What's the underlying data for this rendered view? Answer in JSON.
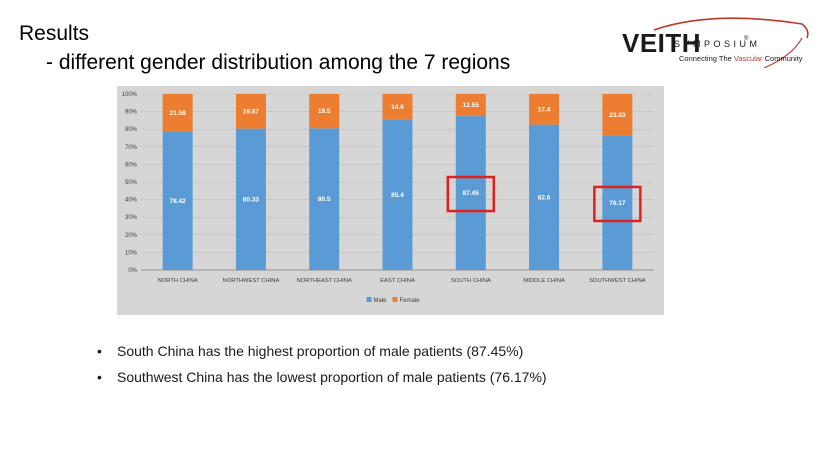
{
  "slide": {
    "title": "Results",
    "subtitle": "- different gender distribution among the 7 regions"
  },
  "logo": {
    "name": "VEITH",
    "symposium": "SYMPOSIUM",
    "tagline_before": "Connecting The ",
    "tagline_highlight": "Vascular",
    "tagline_after": " Community",
    "registered": "®"
  },
  "colors": {
    "male": "#5b9bd5",
    "female": "#ed7d31",
    "highlight_box": "#e0211b",
    "chart_background": "#d6d6d6",
    "gridline": "#bfbfbf"
  },
  "chart_data": {
    "type": "bar",
    "stacked": true,
    "categories": [
      "NORTH CHINA",
      "NORTHWEST CHINA",
      "NORTHEAST CHINA",
      "EAST CHINA",
      "SOUTH CHINA",
      "MIDDLE CHINA",
      "SOUTHWEST CHINA"
    ],
    "series": [
      {
        "name": "Male",
        "values": [
          78.42,
          80.33,
          80.5,
          85.4,
          87.45,
          82.6,
          76.17
        ]
      },
      {
        "name": "Female",
        "values": [
          21.58,
          19.67,
          19.5,
          14.6,
          12.55,
          17.4,
          23.83
        ]
      }
    ],
    "y_ticks": [
      "0%",
      "10%",
      "20%",
      "30%",
      "40%",
      "50%",
      "60%",
      "70%",
      "80%",
      "90%",
      "100%"
    ],
    "ylim": [
      0,
      100
    ],
    "legend_position": "bottom",
    "highlighted_categories": [
      "SOUTH CHINA",
      "SOUTHWEST CHINA"
    ]
  },
  "bullets": [
    "South China has the highest proportion of male patients (87.45%)",
    "Southwest China has the lowest proportion of male patients (76.17%)"
  ]
}
